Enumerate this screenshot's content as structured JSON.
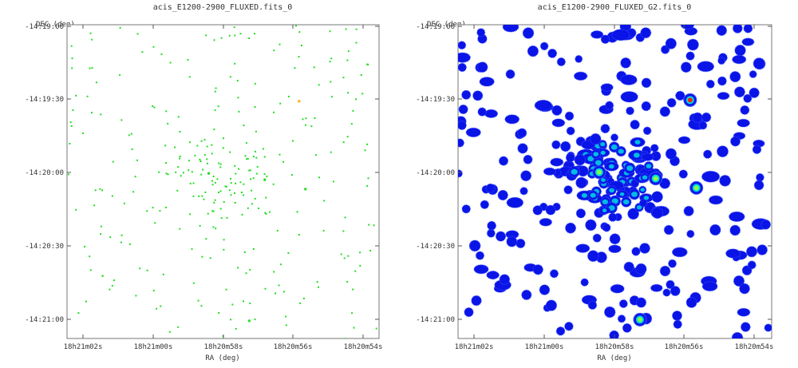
{
  "panels": [
    {
      "title": "acis_E1200-2900_FLUXED.fits_0",
      "y_axis_label": "DEC (deg)",
      "x_axis_label": "RA (deg)",
      "y_ticks": [
        "-14:19:00",
        "-14:19:30",
        "-14:20:00",
        "-14:20:30",
        "-14:21:00"
      ],
      "x_ticks": [
        "18h21m02s",
        "18h21m00s",
        "18h20m58s",
        "18h20m56s",
        "18h20m54s"
      ],
      "image_style": "sparse-photon-events",
      "point_color": "#22dd22",
      "bright_color": "#ffaa00"
    },
    {
      "title": "acis_E1200-2900_FLUXED_G2.fits_0",
      "y_axis_label": "DEC (deg)",
      "x_axis_label": "RA (deg)",
      "y_ticks": [
        "-14:19:00",
        "-14:19:30",
        "-14:20:00",
        "-14:20:30",
        "-14:21:00"
      ],
      "x_ticks": [
        "18h21m02s",
        "18h21m00s",
        "18h20m58s",
        "18h20m56s",
        "18h20m54s"
      ],
      "image_style": "gaussian-smoothed",
      "blob_color": "#0a14e6",
      "core_color": "#00d8e0",
      "hot_color": "#ff2200"
    }
  ]
}
